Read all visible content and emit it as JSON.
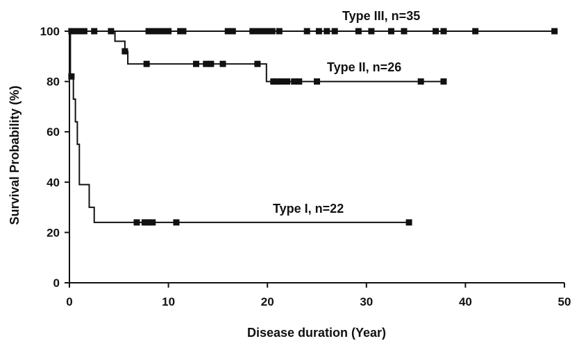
{
  "chart_data": {
    "type": "line",
    "title": "",
    "xlabel": "Disease duration (Year)",
    "ylabel": "Survival Probability (%)",
    "xlim": [
      0,
      50
    ],
    "ylim": [
      0,
      100
    ],
    "xticks": [
      "0",
      "10",
      "20",
      "30",
      "40",
      "50"
    ],
    "yticks": [
      "0",
      "20",
      "40",
      "60",
      "80",
      "100"
    ],
    "grid": false,
    "legend": "inline labels",
    "series": [
      {
        "name": "Type III, n=35",
        "color": "#111111",
        "steps": [
          [
            0,
            100
          ],
          [
            0.05,
            100
          ],
          [
            49,
            100
          ]
        ],
        "censored": [
          0.2,
          0.5,
          1.0,
          1.5,
          2.5,
          4.2,
          8.0,
          8.5,
          9.0,
          9.5,
          10.0,
          11.2,
          11.5,
          16.0,
          16.5,
          18.5,
          19.0,
          19.5,
          20.0,
          20.5,
          21.2,
          24.0,
          25.2,
          26.0,
          26.8,
          29.2,
          30.5,
          32.5,
          33.8,
          37.0,
          37.8,
          41.0,
          49.0
        ],
        "censored_y": 100
      },
      {
        "name": "Type II, n=26",
        "color": "#111111",
        "steps": [
          [
            0,
            100
          ],
          [
            4.6,
            100
          ],
          [
            4.6,
            96
          ],
          [
            5.6,
            96
          ],
          [
            5.6,
            92
          ],
          [
            5.9,
            92
          ],
          [
            5.9,
            87
          ],
          [
            19.9,
            87
          ],
          [
            19.9,
            80
          ],
          [
            37.8,
            80
          ]
        ],
        "censored": [
          5.6,
          7.8,
          12.8,
          13.8,
          14.3,
          15.5,
          19.0,
          20.6,
          21.0,
          21.5,
          22.0,
          22.7,
          23.2,
          25.0,
          35.5,
          37.8
        ],
        "censored_y_map": "step"
      },
      {
        "name": "Type I, n=22",
        "color": "#111111",
        "steps": [
          [
            0,
            100
          ],
          [
            0.1,
            100
          ],
          [
            0.1,
            82
          ],
          [
            0.4,
            82
          ],
          [
            0.4,
            73
          ],
          [
            0.6,
            73
          ],
          [
            0.6,
            64
          ],
          [
            0.8,
            64
          ],
          [
            0.8,
            55
          ],
          [
            1.0,
            55
          ],
          [
            1.0,
            39
          ],
          [
            2.0,
            39
          ],
          [
            2.0,
            30
          ],
          [
            2.5,
            30
          ],
          [
            2.5,
            24
          ],
          [
            34.3,
            24
          ]
        ],
        "censored": [
          0.2,
          6.8,
          7.6,
          8.0,
          8.4,
          10.8,
          34.3
        ],
        "censored_y_map": "step"
      }
    ]
  }
}
